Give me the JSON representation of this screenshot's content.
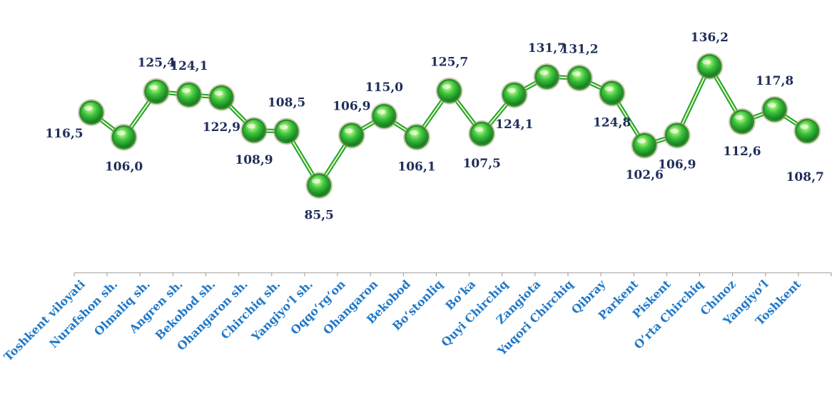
{
  "chart_data": {
    "type": "line",
    "categories": [
      "Toshkent viloyati",
      "Nurafshon sh.",
      "Olmaliq sh.",
      "Angren sh.",
      "Bekobod sh.",
      "Ohangaron sh.",
      "Chirchiq sh.",
      "Yangiyo‘l sh.",
      "Oqqo‘rg‘on",
      "Ohangaron",
      "Bekobod",
      "Bo‘stonliq",
      "Bo‘ka",
      "Quyi Chirchiq",
      "Zangiota",
      "Yuqori Chirchiq",
      "Qibray",
      "Parkent",
      "Piskent",
      "O’rta Chirchiq",
      "Chinoz",
      "Yangiyo‘l",
      "Toshkent"
    ],
    "values": [
      116.5,
      106.0,
      125.4,
      124.1,
      122.9,
      108.9,
      108.5,
      85.5,
      106.9,
      115.0,
      106.1,
      125.7,
      107.5,
      124.1,
      131.7,
      131.2,
      124.8,
      102.6,
      106.9,
      136.2,
      112.6,
      117.8,
      108.7
    ],
    "value_labels": [
      "116,5",
      "106,0",
      "125,4",
      "124,1",
      "122,9",
      "108,9",
      "108,5",
      "85,5",
      "106,9",
      "115,0",
      "106,1",
      "125,7",
      "107,5",
      "124,1",
      "131,7",
      "131,2",
      "124,8",
      "102,6",
      "106,9",
      "136,2",
      "112,6",
      "117,8",
      "108,7"
    ],
    "title": "",
    "xlabel": "",
    "ylabel": "",
    "grid": false,
    "legend": "none",
    "colors": {
      "line": "#5ccf6a",
      "line_dark": "#1f9a3a",
      "marker_light": "#d8ff9a",
      "marker": "#3cc43c",
      "marker_dark": "#0c6b1c",
      "value_label": "#1f2d5a",
      "tick_label": "#1f78c8",
      "axis": "#999999"
    }
  }
}
